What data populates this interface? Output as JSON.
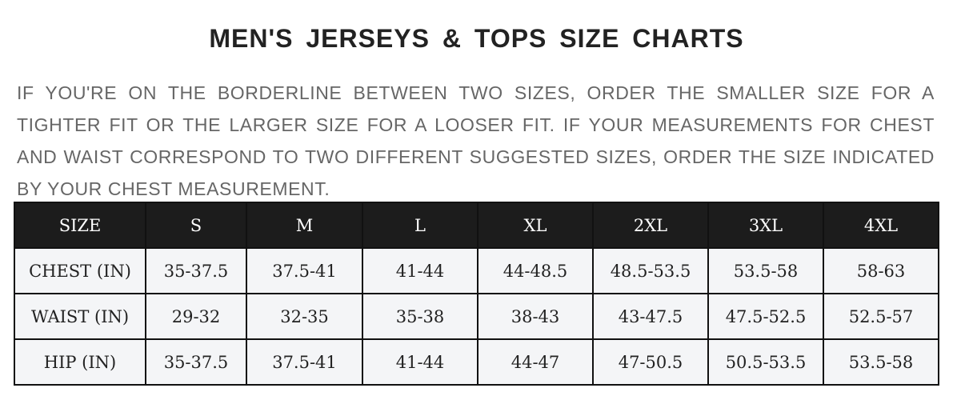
{
  "title": "MEN'S JERSEYS & TOPS SIZE CHARTS",
  "note": "IF YOU'RE ON THE BORDERLINE BETWEEN TWO SIZES, ORDER THE SMALLER SIZE FOR A TIGHTER FIT OR THE LARGER SIZE FOR A LOOSER FIT. IF YOUR MEASUREMENTS FOR CHEST AND WAIST CORRESPOND TO TWO DIFFERENT SUGGESTED SIZES, ORDER THE SIZE INDICATED BY YOUR CHEST MEASUREMENT.",
  "table": {
    "headers": [
      "SIZE",
      "S",
      "M",
      "L",
      "XL",
      "2XL",
      "3XL",
      "4XL"
    ],
    "rows": [
      [
        "CHEST (IN)",
        "35-37.5",
        "37.5-41",
        "41-44",
        "44-48.5",
        "48.5-53.5",
        "53.5-58",
        "58-63"
      ],
      [
        "WAIST (IN)",
        "29-32",
        "32-35",
        "35-38",
        "38-43",
        "43-47.5",
        "47.5-52.5",
        "52.5-57"
      ],
      [
        "HIP (IN)",
        "35-37.5",
        "37.5-41",
        "41-44",
        "44-47",
        "47-50.5",
        "50.5-53.5",
        "53.5-58"
      ]
    ]
  },
  "colors": {
    "header_bg": "#1c1c1c",
    "row_bg": "#f4f5f7",
    "note_text": "#666666"
  }
}
